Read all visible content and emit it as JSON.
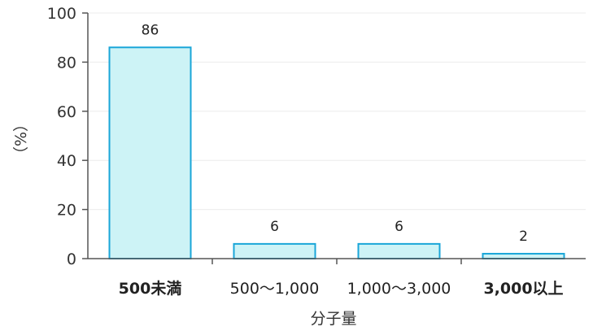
{
  "chart_data": {
    "type": "bar",
    "categories": [
      "500未満",
      "500〜1,000",
      "1,000〜3,000",
      "3,000以上"
    ],
    "values": [
      86,
      6,
      6,
      2
    ],
    "data_labels": [
      "86",
      "6",
      "6",
      "2"
    ],
    "xlabel": "分子量",
    "ylabel": "（%）",
    "ylim": [
      0,
      100
    ],
    "yticks": [
      "0",
      "20",
      "40",
      "60",
      "80",
      "100"
    ],
    "grid": true,
    "legend": "none",
    "colors": {
      "bar_fill": "#cdf3f6",
      "bar_stroke": "#1aa6d8",
      "grid": "#ececec",
      "axis": "#555555"
    }
  }
}
